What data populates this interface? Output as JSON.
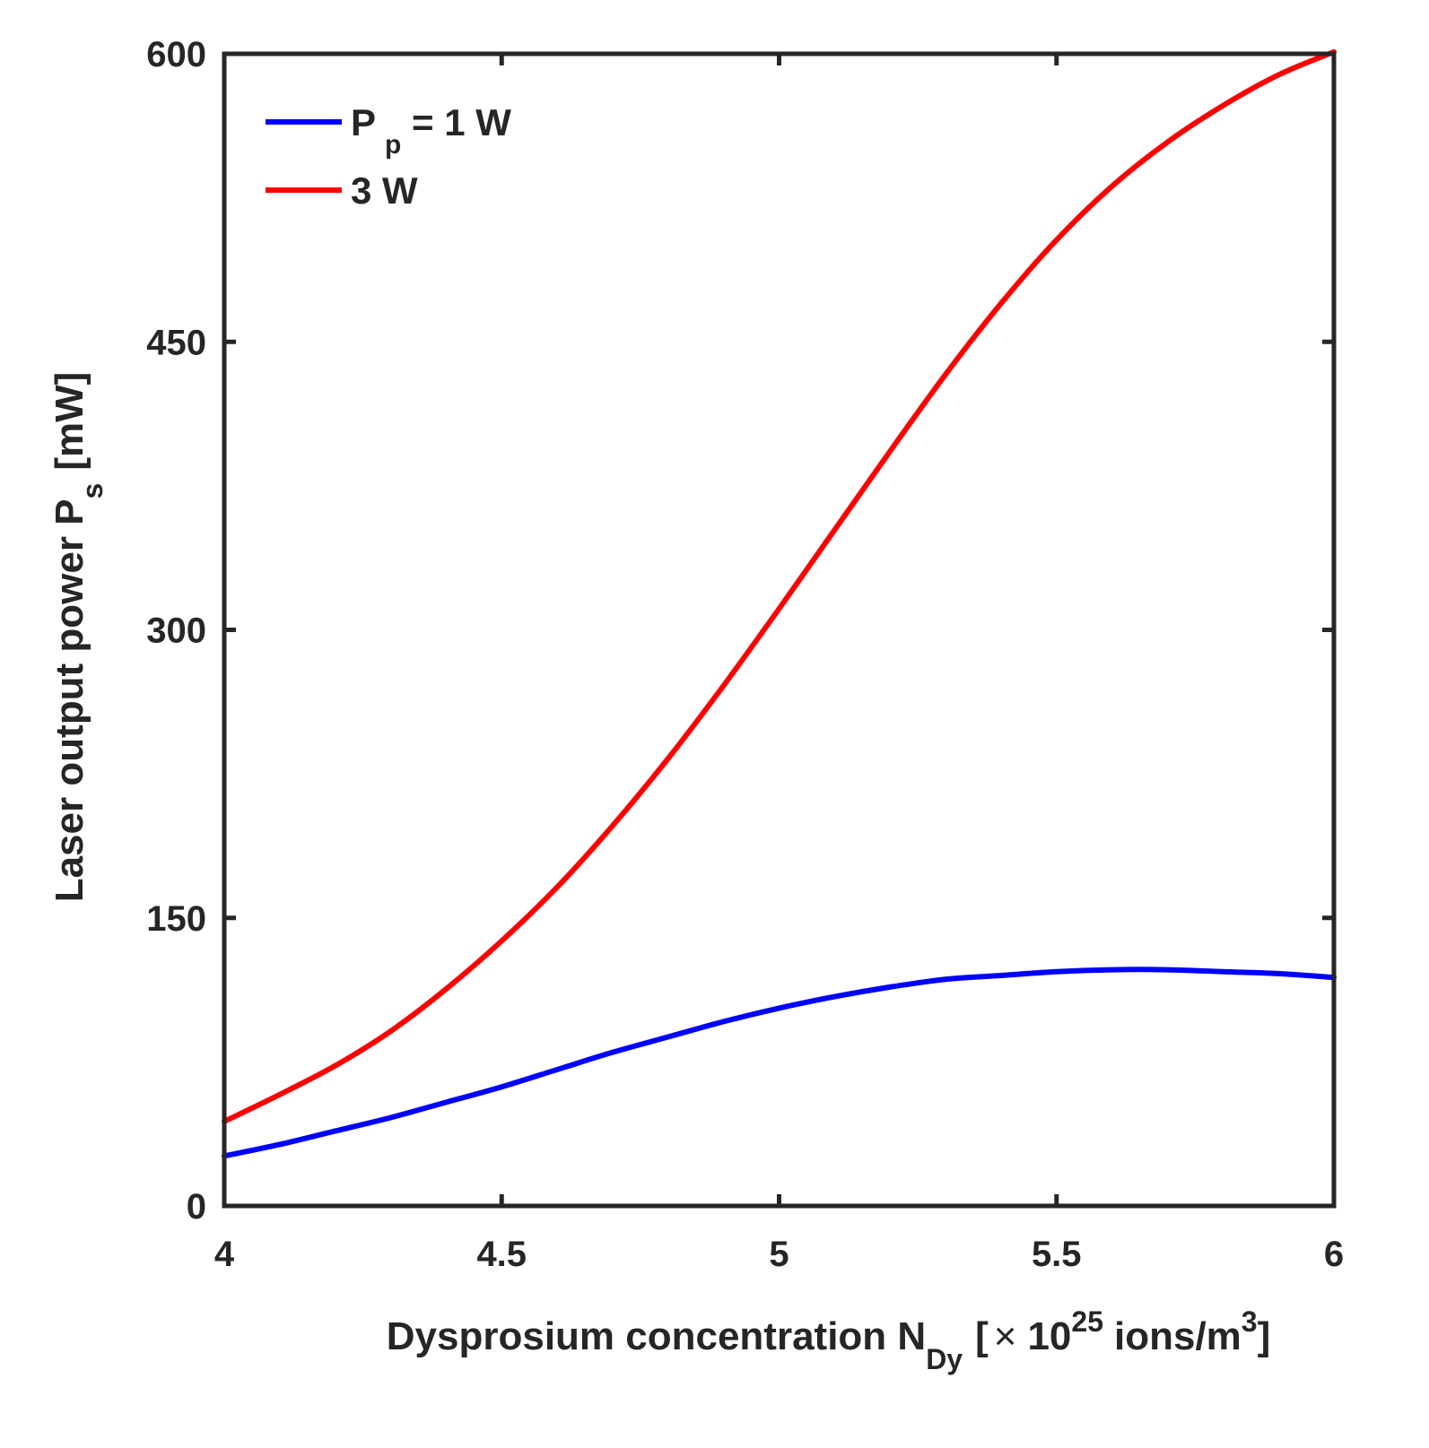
{
  "chart_data": {
    "type": "line",
    "title": "",
    "xlabel": {
      "main": "Dysprosium concentration N",
      "sub": "Dy",
      "bracket_open": "[",
      "times": "×",
      "ten": "10",
      "exp": "25",
      "units": "ions/m",
      "units_exp": "3",
      "bracket_close": "]"
    },
    "ylabel": {
      "main": "Laser output power P",
      "sub": "s",
      "units": "[mW]"
    },
    "xlim": [
      4,
      6
    ],
    "ylim": [
      0,
      600
    ],
    "xticks": [
      4,
      4.5,
      5,
      5.5,
      6
    ],
    "xtick_labels": [
      "4",
      "4.5",
      "5",
      "5.5",
      "6"
    ],
    "yticks": [
      0,
      150,
      300,
      450,
      600
    ],
    "ytick_labels": [
      "0",
      "150",
      "300",
      "450",
      "600"
    ],
    "grid": false,
    "legend_position": "top-left",
    "x": [
      4.0,
      4.1,
      4.2,
      4.3,
      4.4,
      4.5,
      4.6,
      4.7,
      4.8,
      4.9,
      5.0,
      5.1,
      5.2,
      5.3,
      5.4,
      5.5,
      5.6,
      5.7,
      5.8,
      5.9,
      6.0
    ],
    "series": [
      {
        "name": "P_p = 1 W",
        "legend": {
          "prefix": "P",
          "sub": "p",
          "suffix": " = 1 W"
        },
        "color": "#0000ff",
        "values": [
          26,
          32,
          39,
          46,
          54,
          62,
          71,
          80,
          88,
          96,
          103,
          109,
          114,
          118,
          120,
          122,
          123,
          123,
          122,
          121,
          119
        ]
      },
      {
        "name": "3 W",
        "legend": {
          "prefix": "3 W",
          "sub": "",
          "suffix": ""
        },
        "color": "#ff0000",
        "values": [
          44,
          58,
          73,
          91,
          113,
          138,
          166,
          198,
          233,
          271,
          311,
          352,
          393,
          433,
          470,
          503,
          531,
          554,
          573,
          589,
          601
        ]
      }
    ]
  }
}
